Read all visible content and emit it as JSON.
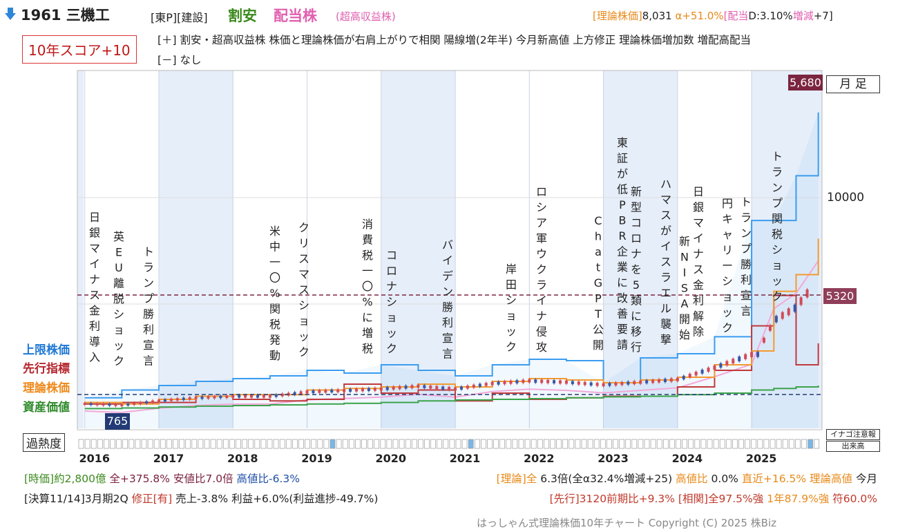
{
  "header": {
    "arrow_icon": "down-arrow-icon",
    "code_name": "1961 三機工",
    "market_sector": "[東P][建設]",
    "tag_cheap": "割安",
    "tag_dividend": "配当株",
    "tag_dividend_sub": "(超高収益株)",
    "right_theoretical_label": "[理論株価]",
    "right_theoretical_value": "8,031",
    "right_alpha": "α+51.0%",
    "right_dividend_label": "[配当",
    "right_dividend_value": "D:3.10%",
    "right_change_label": "増減",
    "right_change_value": "+7]"
  },
  "score": {
    "label": "10年スコア+10"
  },
  "plus_line": "[＋] 割安・超高収益株 株価と理論株価が右肩上がりで相関 陽線増(2年半) 今月新高値 上方修正 理論株価増加数 増配高配当",
  "minus_line": "[－] なし",
  "legend": {
    "upper": "上限株価",
    "leading": "先行指標",
    "theory": "理論株価",
    "asset": "資産価値"
  },
  "badges": {
    "period": "月 足",
    "high": "5,680",
    "current": "5320",
    "low": "765",
    "y_tick": "10000"
  },
  "heat": {
    "label": "過熱度",
    "caution": "イナゴ注意報",
    "volume": "出来高"
  },
  "years": [
    "2016",
    "2017",
    "2018",
    "2019",
    "2020",
    "2021",
    "2022",
    "2023",
    "2024",
    "2025"
  ],
  "events": [
    "日銀マイナス金利導入",
    "英EU離脱ショック",
    "トランプ勝利宣言",
    "米中一〇%関税発動",
    "クリスマスショック",
    "消費税一〇%に増税",
    "コロナショック",
    "バイデン勝利宣言",
    "岸田ショック",
    "ロシア軍ウクライナ侵攻",
    "ChatGPT公開",
    "東証が低PBR企業に改善要請",
    "新型コロナを5類に移行",
    "ハマスがイスラエル襲撃",
    "新NISA開始",
    "日銀マイナス金利解除",
    "円キャリーショック",
    "トランプ勝利宣言",
    "トランプ関税ショック"
  ],
  "footer": {
    "row1_left_a": "[時価]約2,800億",
    "row1_left_b": "全+375.8%",
    "row1_left_c": "安値比7.0倍",
    "row1_left_d": "高値比-6.3%",
    "row1_right_a": "[理論]全",
    "row1_right_b": "6.3倍(全α32.4%増減+25)",
    "row1_right_c": "高値比",
    "row1_right_d": "0.0%",
    "row1_right_e": "直近+16.5%",
    "row1_right_f": "理論高値",
    "row1_right_g": "今月",
    "row2_left_a": "[決算11/14]3月期2Q",
    "row2_left_b": "修正[有]",
    "row2_left_c": "売上-3.8% 利益+6.0%(利益進捗-49.7%)",
    "row2_right_a": "[先行]3120前期比+9.3%",
    "row2_right_b": "[相関]全97.5%強",
    "row2_right_c": "1年87.9%強",
    "row2_right_d": "符60.0%",
    "copyright": "はっしゃん式理論株価10年チャート Copyright (C) 2025 株Biz"
  },
  "colors": {
    "upper": "#3a9cf0",
    "leading": "#c0393b",
    "theory": "#f39a2e",
    "asset": "#3aa34a",
    "band": "#f3a8d8",
    "price_up": "#d24b57",
    "price_down": "#3a56a8",
    "shade": "#e6eef9"
  },
  "chart_data": {
    "type": "line",
    "title": "",
    "xlabel": "",
    "ylabel": "",
    "x_range": [
      2015.9,
      2025.95
    ],
    "y_range_approx": [
      0,
      15000
    ],
    "y_ticks": [
      10000
    ],
    "reference_lines": {
      "current_price": 5320,
      "low": 765
    },
    "series": [
      {
        "name": "上限株価",
        "x": [
          2016.0,
          2016.5,
          2017.0,
          2017.5,
          2018.0,
          2018.5,
          2019.0,
          2019.5,
          2020.0,
          2020.5,
          2021.0,
          2021.5,
          2022.0,
          2022.5,
          2023.0,
          2023.5,
          2024.0,
          2024.5,
          2025.0,
          2025.3,
          2025.6,
          2025.9
        ],
        "values": [
          1150,
          1400,
          1550,
          1700,
          1800,
          1900,
          2100,
          2000,
          2300,
          2100,
          1900,
          2300,
          2500,
          2450,
          1650,
          2550,
          2700,
          3400,
          8900,
          8900,
          10900,
          13500
        ]
      },
      {
        "name": "先行指標",
        "x": [
          2016.0,
          2016.5,
          2017.0,
          2017.5,
          2018.0,
          2018.5,
          2019.0,
          2019.5,
          2020.0,
          2020.5,
          2021.0,
          2021.5,
          2022.0,
          2022.5,
          2023.0,
          2023.5,
          2024.0,
          2024.5,
          2025.0,
          2025.3,
          2025.6,
          2025.9
        ],
        "values": [
          950,
          1000,
          1000,
          1200,
          1100,
          1050,
          1100,
          1600,
          1300,
          1400,
          1050,
          1300,
          1100,
          1150,
          1200,
          1200,
          1500,
          2100,
          3900,
          5300,
          2300,
          3100
        ]
      },
      {
        "name": "理論株価",
        "x": [
          2016.0,
          2016.5,
          2017.0,
          2017.5,
          2018.0,
          2018.5,
          2019.0,
          2019.5,
          2020.0,
          2020.5,
          2021.0,
          2021.5,
          2022.0,
          2022.5,
          2023.0,
          2023.5,
          2024.0,
          2024.5,
          2025.0,
          2025.3,
          2025.6,
          2025.9
        ],
        "values": [
          1000,
          950,
          1100,
          1200,
          1250,
          1250,
          1400,
          1450,
          1500,
          1600,
          1500,
          1700,
          1800,
          1750,
          1650,
          1750,
          1850,
          2300,
          2800,
          5500,
          6300,
          8031
        ]
      },
      {
        "name": "資産価値",
        "x": [
          2016.0,
          2016.5,
          2017.0,
          2017.5,
          2018.0,
          2018.5,
          2019.0,
          2019.5,
          2020.0,
          2020.5,
          2021.0,
          2021.5,
          2022.0,
          2022.5,
          2023.0,
          2023.5,
          2024.0,
          2024.5,
          2025.0,
          2025.3,
          2025.6,
          2025.9
        ],
        "values": [
          800,
          820,
          850,
          880,
          900,
          920,
          950,
          970,
          1000,
          1050,
          1080,
          1100,
          1120,
          1150,
          1180,
          1200,
          1250,
          1300,
          1400,
          1450,
          1500,
          1550
        ]
      }
    ]
  }
}
